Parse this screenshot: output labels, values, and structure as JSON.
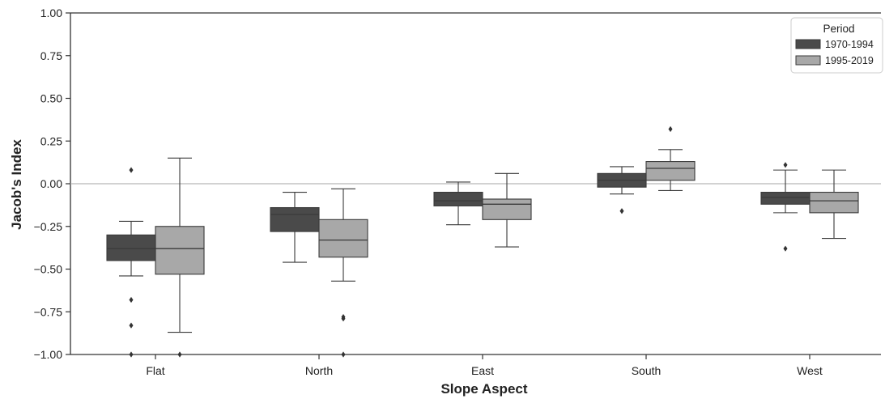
{
  "chart_data": {
    "type": "boxplot",
    "xlabel": "Slope Aspect",
    "ylabel": "Jacob's Index",
    "ylim": [
      -1.0,
      1.0
    ],
    "yticks": [
      "1.00",
      "0.75",
      "0.50",
      "0.25",
      "0.00",
      "−0.25",
      "−0.50",
      "−0.75",
      "−1.00"
    ],
    "ytick_values": [
      1.0,
      0.75,
      0.5,
      0.25,
      0.0,
      -0.25,
      -0.5,
      -0.75,
      -1.0
    ],
    "categories": [
      "Flat",
      "North",
      "East",
      "South",
      "West"
    ],
    "reference_line": 0.0,
    "grid": false,
    "legend": {
      "title": "Period",
      "placement": "top-right"
    },
    "series": [
      {
        "name": "1970-1994",
        "color": "#4a4a4a",
        "boxes": [
          {
            "whislo": -0.54,
            "q1": -0.45,
            "med": -0.38,
            "q3": -0.3,
            "whishi": -0.22,
            "fliers": [
              0.08,
              -0.68,
              -0.83,
              -1.0
            ]
          },
          {
            "whislo": -0.46,
            "q1": -0.28,
            "med": -0.18,
            "q3": -0.14,
            "whishi": -0.05,
            "fliers": []
          },
          {
            "whislo": -0.24,
            "q1": -0.13,
            "med": -0.1,
            "q3": -0.05,
            "whishi": 0.01,
            "fliers": []
          },
          {
            "whislo": -0.06,
            "q1": -0.02,
            "med": 0.02,
            "q3": 0.06,
            "whishi": 0.1,
            "fliers": [
              -0.16
            ]
          },
          {
            "whislo": -0.17,
            "q1": -0.12,
            "med": -0.08,
            "q3": -0.05,
            "whishi": 0.08,
            "fliers": [
              0.11,
              -0.38
            ]
          }
        ]
      },
      {
        "name": "1995-2019",
        "color": "#a8a8a8",
        "boxes": [
          {
            "whislo": -0.87,
            "q1": -0.53,
            "med": -0.38,
            "q3": -0.25,
            "whishi": 0.15,
            "fliers": [
              -1.0
            ]
          },
          {
            "whislo": -0.57,
            "q1": -0.43,
            "med": -0.33,
            "q3": -0.21,
            "whishi": -0.03,
            "fliers": [
              -0.78,
              -0.79,
              -1.0
            ]
          },
          {
            "whislo": -0.37,
            "q1": -0.21,
            "med": -0.12,
            "q3": -0.09,
            "whishi": 0.06,
            "fliers": []
          },
          {
            "whislo": -0.04,
            "q1": 0.02,
            "med": 0.09,
            "q3": 0.13,
            "whishi": 0.2,
            "fliers": [
              0.32
            ]
          },
          {
            "whislo": -0.32,
            "q1": -0.17,
            "med": -0.1,
            "q3": -0.05,
            "whishi": 0.08,
            "fliers": []
          }
        ]
      }
    ]
  }
}
